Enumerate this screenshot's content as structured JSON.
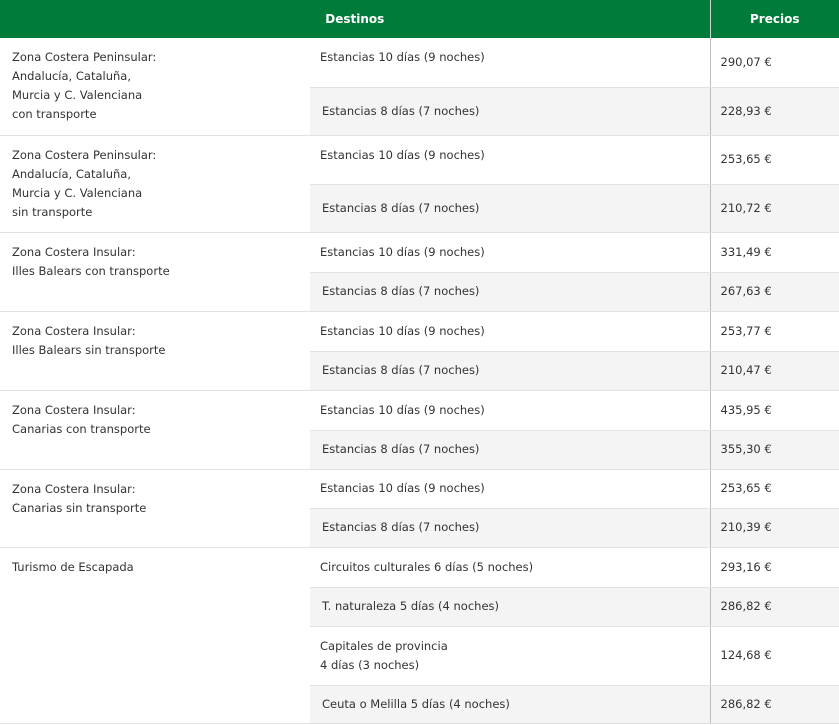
{
  "header": {
    "destinos": "Destinos",
    "precios": "Precios"
  },
  "groups": [
    {
      "name": [
        "Zona Costera Peninsular:",
        "Andalucía, Cataluña,",
        "Murcia y C. Valenciana",
        "con transporte"
      ],
      "rows": [
        {
          "dest": [
            "Estancias 10 días (9 noches)"
          ],
          "price": "290,07 €"
        },
        {
          "dest": [
            "Estancias 8 días (7 noches)"
          ],
          "price": "228,93 €"
        }
      ]
    },
    {
      "name": [
        "Zona Costera Peninsular:",
        "Andalucía, Cataluña,",
        "Murcia y C. Valenciana",
        "sin transporte"
      ],
      "rows": [
        {
          "dest": [
            "Estancias 10 días (9 noches)"
          ],
          "price": "253,65 €"
        },
        {
          "dest": [
            "Estancias 8 días (7 noches)"
          ],
          "price": "210,72 €"
        }
      ]
    },
    {
      "name": [
        "Zona Costera Insular:",
        "Illes Balears con transporte"
      ],
      "rows": [
        {
          "dest": [
            "Estancias 10 días (9 noches)"
          ],
          "price": "331,49 €"
        },
        {
          "dest": [
            "Estancias 8 días (7 noches)"
          ],
          "price": "267,63 €"
        }
      ]
    },
    {
      "name": [
        "Zona Costera Insular:",
        "Illes Balears sin transporte"
      ],
      "rows": [
        {
          "dest": [
            "Estancias 10 días (9 noches)"
          ],
          "price": "253,77 €"
        },
        {
          "dest": [
            "Estancias 8 días (7 noches)"
          ],
          "price": "210,47 €"
        }
      ]
    },
    {
      "name": [
        "Zona Costera Insular:",
        "Canarias con transporte"
      ],
      "rows": [
        {
          "dest": [
            "Estancias 10 días (9 noches)"
          ],
          "price": "435,95 €"
        },
        {
          "dest": [
            "Estancias 8 días (7 noches)"
          ],
          "price": "355,30 €"
        }
      ]
    },
    {
      "name": [
        "Zona Costera Insular:",
        "Canarias sin transporte"
      ],
      "rows": [
        {
          "dest": [
            "Estancias 10 días (9 noches)"
          ],
          "price": "253,65 €"
        },
        {
          "dest": [
            "Estancias 8 días (7 noches)"
          ],
          "price": "210,39 €"
        }
      ]
    },
    {
      "name": [
        "Turismo de Escapada"
      ],
      "rows": [
        {
          "dest": [
            "Circuitos culturales 6 días (5 noches)"
          ],
          "price": "293,16 €"
        },
        {
          "dest": [
            "T. naturaleza 5 días (4 noches)"
          ],
          "price": "286,82 €"
        },
        {
          "dest": [
            "Capitales de provincia",
            "4 días (3 noches)"
          ],
          "price": "124,68 €"
        },
        {
          "dest": [
            "Ceuta o Melilla 5 días (4 noches)"
          ],
          "price": "286,82 €"
        }
      ]
    }
  ]
}
